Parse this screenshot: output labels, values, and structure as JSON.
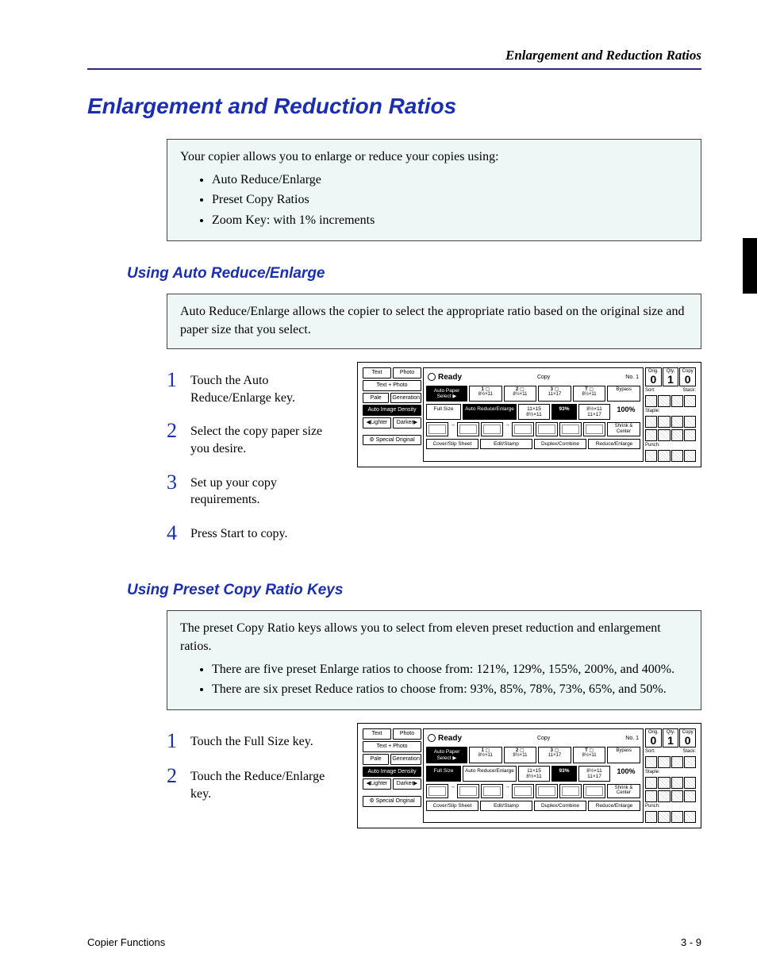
{
  "running_head": "Enlargement and Reduction Ratios",
  "title": "Enlargement and Reduction Ratios",
  "intro": {
    "lead": "Your copier allows you to enlarge or reduce your copies using:",
    "items": [
      "Auto Reduce/Enlarge",
      "Preset Copy Ratios",
      "Zoom Key: with 1% increments"
    ],
    "box_bg": "#eef6f6"
  },
  "section_auto": {
    "heading": "Using Auto Reduce/Enlarge",
    "box": "Auto Reduce/Enlarge allows the copier to select the appropriate ratio based on the original size and paper size that you select.",
    "steps": [
      "Touch the Auto Reduce/Enlarge key.",
      "Select the copy paper size you desire.",
      "Set up your copy requirements.",
      "Press Start to copy."
    ]
  },
  "section_preset": {
    "heading": "Using Preset Copy Ratio Keys",
    "box_lead": "The preset Copy Ratio keys allows you to select from eleven preset reduction and enlargement ratios.",
    "box_items": [
      "There are five preset Enlarge ratios to choose from: 121%, 129%, 155%, 200%, and 400%.",
      "There are six preset Reduce ratios to choose from: 93%, 85%, 78%, 73%, 65%, and 50%."
    ],
    "steps": [
      "Touch the Full Size key.",
      "Touch the Reduce/Enlarge key."
    ]
  },
  "panel": {
    "ready": "Ready",
    "mode": "Copy",
    "job_no": "No. 1",
    "left_buttons": {
      "text": "Text",
      "photo": "Photo",
      "text_photo": "Text + Photo",
      "pale": "Pale",
      "generation": "Generation",
      "auto_density": "Auto Image Density",
      "lighter": "Lighter",
      "darker": "Darker",
      "special": "Special Original"
    },
    "auto_paper": "Auto Paper Select ▶",
    "trays": [
      {
        "slot": "1",
        "size": "8½×11"
      },
      {
        "slot": "2",
        "size": "8½×11"
      },
      {
        "slot": "3",
        "size": "11×17"
      },
      {
        "slot": "T",
        "size": "8½×11"
      },
      {
        "slot": "",
        "size": "Bypass"
      }
    ],
    "full_size": "Full Size",
    "auto_re": "Auto Reduce/Enlarge",
    "ratio_a": "11×15 8½×11",
    "pct_a": "93%",
    "ratio_b": "8½×11 11×17",
    "pct_total": "100%",
    "shrink": "Shrink & Center",
    "tabs": [
      "Cover/Slip Sheet",
      "Edit/Stamp",
      "Duplex/Combine",
      "Reduce/Enlarge"
    ],
    "counters": {
      "orig": "Orig.",
      "qty": "Qty.",
      "copy": "Copy",
      "orig_v": "0",
      "qty_v": "1",
      "copy_v": "0"
    },
    "right_labels": {
      "sort": "Sort:",
      "stack": "Stack:",
      "staple": "Staple:",
      "punch": "Punch:"
    }
  },
  "footer": {
    "left": "Copier Functions",
    "right": "3 - 9"
  },
  "colors": {
    "accent": "#1a2fb0",
    "rule": "#2a2a7a"
  }
}
